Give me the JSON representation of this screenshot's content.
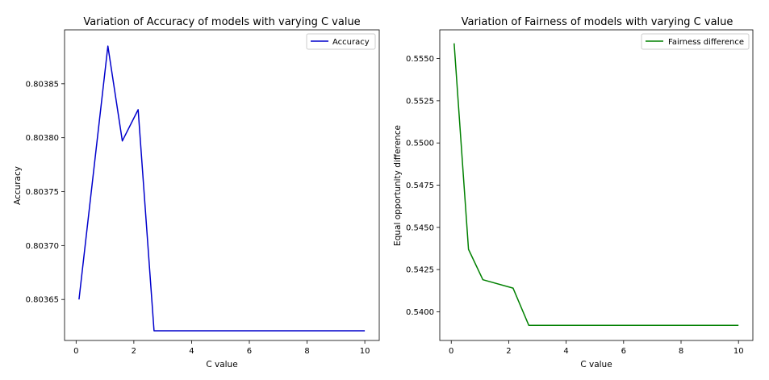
{
  "chart_data": [
    {
      "type": "line",
      "title": "Variation of Accuracy of models with varying C value",
      "xlabel": "C value",
      "ylabel": "Accuracy",
      "xlim": [
        -0.4,
        10.5
      ],
      "ylim": [
        0.803612,
        0.8039
      ],
      "xticks": [
        0,
        2,
        4,
        6,
        8,
        10
      ],
      "yticks": [
        0.80365,
        0.8037,
        0.80375,
        0.8038,
        0.80385
      ],
      "ytick_labels": [
        "0.80365",
        "0.80370",
        "0.80375",
        "0.80380",
        "0.80385"
      ],
      "legend_position": "top-right",
      "grid": false,
      "series": [
        {
          "name": "Accuracy",
          "color": "#0000cc",
          "x": [
            0.1,
            1.1,
            1.6,
            2.15,
            2.7,
            10
          ],
          "y": [
            0.80365,
            0.803885,
            0.803797,
            0.803826,
            0.803621,
            0.803621
          ]
        }
      ]
    },
    {
      "type": "line",
      "title": "Variation of Fairness of models with varying C value",
      "xlabel": "C value",
      "ylabel": "Equal opportunity difference",
      "xlim": [
        -0.4,
        10.5
      ],
      "ylim": [
        0.5383,
        0.5567
      ],
      "xticks": [
        0,
        2,
        4,
        6,
        8,
        10
      ],
      "yticks": [
        0.54,
        0.5425,
        0.545,
        0.5475,
        0.55,
        0.5525,
        0.555
      ],
      "ytick_labels": [
        "0.5400",
        "0.5425",
        "0.5450",
        "0.5475",
        "0.5500",
        "0.5525",
        "0.5550"
      ],
      "legend_position": "top-right",
      "grid": false,
      "series": [
        {
          "name": "Fairness difference",
          "color": "#008000",
          "x": [
            0.1,
            0.6,
            1.1,
            2.15,
            2.7,
            10
          ],
          "y": [
            0.5559,
            0.5437,
            0.5419,
            0.5414,
            0.5392,
            0.5392
          ]
        }
      ]
    }
  ]
}
